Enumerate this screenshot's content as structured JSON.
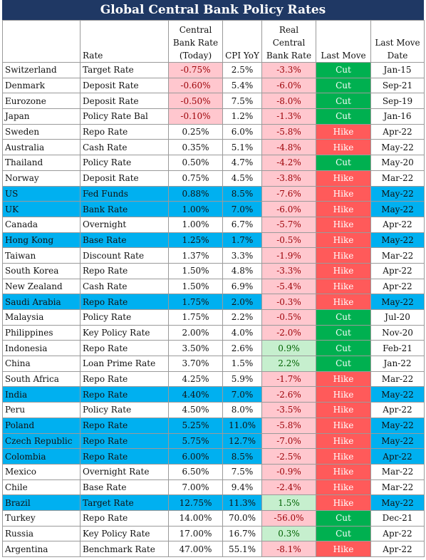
{
  "title": "Global Central Bank Policy Rates",
  "headers": {
    "country": "",
    "rate": "Rate",
    "cb_rate": [
      "Central",
      "Bank Rate",
      "(Today)"
    ],
    "cpi": "CPI YoY",
    "real": [
      "Real",
      "Central",
      "Bank Rate"
    ],
    "last_move": "Last Move",
    "date": [
      "Last Move",
      "Date"
    ]
  },
  "colors": {
    "title_bg": "#1f3864",
    "highlight_row": "#00b0f0",
    "negative_fill": "#ffc7ce",
    "positive_fill": "#c6efce",
    "cut_fill": "#00b050",
    "hike_fill": "#ff5a5a"
  },
  "chart_data": {
    "type": "table",
    "title": "Global Central Bank Policy Rates",
    "columns": [
      "",
      "Rate",
      "Central Bank Rate (Today)",
      "CPI YoY",
      "Real Central Bank Rate",
      "Last Move",
      "Last Move Date"
    ],
    "rows": [
      {
        "country": "Switzerland",
        "rate": "Target Rate",
        "cb_rate": "-0.75%",
        "cpi": "2.5%",
        "real": "-3.3%",
        "move": "Cut",
        "date": "Jan-15",
        "highlight": false
      },
      {
        "country": "Denmark",
        "rate": "Deposit Rate",
        "cb_rate": "-0.60%",
        "cpi": "5.4%",
        "real": "-6.0%",
        "move": "Cut",
        "date": "Sep-21",
        "highlight": false
      },
      {
        "country": "Eurozone",
        "rate": "Deposit Rate",
        "cb_rate": "-0.50%",
        "cpi": "7.5%",
        "real": "-8.0%",
        "move": "Cut",
        "date": "Sep-19",
        "highlight": false
      },
      {
        "country": "Japan",
        "rate": "Policy Rate Bal",
        "cb_rate": "-0.10%",
        "cpi": "1.2%",
        "real": "-1.3%",
        "move": "Cut",
        "date": "Jan-16",
        "highlight": false
      },
      {
        "country": "Sweden",
        "rate": "Repo Rate",
        "cb_rate": "0.25%",
        "cpi": "6.0%",
        "real": "-5.8%",
        "move": "Hike",
        "date": "Apr-22",
        "highlight": false
      },
      {
        "country": "Australia",
        "rate": "Cash Rate",
        "cb_rate": "0.35%",
        "cpi": "5.1%",
        "real": "-4.8%",
        "move": "Hike",
        "date": "May-22",
        "highlight": false
      },
      {
        "country": "Thailand",
        "rate": "Policy Rate",
        "cb_rate": "0.50%",
        "cpi": "4.7%",
        "real": "-4.2%",
        "move": "Cut",
        "date": "May-20",
        "highlight": false
      },
      {
        "country": "Norway",
        "rate": "Deposit Rate",
        "cb_rate": "0.75%",
        "cpi": "4.5%",
        "real": "-3.8%",
        "move": "Hike",
        "date": "Mar-22",
        "highlight": false
      },
      {
        "country": "US",
        "rate": "Fed Funds",
        "cb_rate": "0.88%",
        "cpi": "8.5%",
        "real": "-7.6%",
        "move": "Hike",
        "date": "May-22",
        "highlight": true
      },
      {
        "country": "UK",
        "rate": "Bank Rate",
        "cb_rate": "1.00%",
        "cpi": "7.0%",
        "real": "-6.0%",
        "move": "Hike",
        "date": "May-22",
        "highlight": true
      },
      {
        "country": "Canada",
        "rate": "Overnight",
        "cb_rate": "1.00%",
        "cpi": "6.7%",
        "real": "-5.7%",
        "move": "Hike",
        "date": "Apr-22",
        "highlight": false
      },
      {
        "country": "Hong Kong",
        "rate": "Base Rate",
        "cb_rate": "1.25%",
        "cpi": "1.7%",
        "real": "-0.5%",
        "move": "Hike",
        "date": "May-22",
        "highlight": true
      },
      {
        "country": "Taiwan",
        "rate": "Discount Rate",
        "cb_rate": "1.37%",
        "cpi": "3.3%",
        "real": "-1.9%",
        "move": "Hike",
        "date": "Mar-22",
        "highlight": false
      },
      {
        "country": "South Korea",
        "rate": "Repo Rate",
        "cb_rate": "1.50%",
        "cpi": "4.8%",
        "real": "-3.3%",
        "move": "Hike",
        "date": "Apr-22",
        "highlight": false
      },
      {
        "country": "New Zealand",
        "rate": "Cash Rate",
        "cb_rate": "1.50%",
        "cpi": "6.9%",
        "real": "-5.4%",
        "move": "Hike",
        "date": "Apr-22",
        "highlight": false
      },
      {
        "country": "Saudi Arabia",
        "rate": "Repo Rate",
        "cb_rate": "1.75%",
        "cpi": "2.0%",
        "real": "-0.3%",
        "move": "Hike",
        "date": "May-22",
        "highlight": true
      },
      {
        "country": "Malaysia",
        "rate": "Policy Rate",
        "cb_rate": "1.75%",
        "cpi": "2.2%",
        "real": "-0.5%",
        "move": "Cut",
        "date": "Jul-20",
        "highlight": false
      },
      {
        "country": "Philippines",
        "rate": "Key Policy Rate",
        "cb_rate": "2.00%",
        "cpi": "4.0%",
        "real": "-2.0%",
        "move": "Cut",
        "date": "Nov-20",
        "highlight": false
      },
      {
        "country": "Indonesia",
        "rate": "Repo Rate",
        "cb_rate": "3.50%",
        "cpi": "2.6%",
        "real": "0.9%",
        "move": "Cut",
        "date": "Feb-21",
        "highlight": false
      },
      {
        "country": "China",
        "rate": "Loan Prime Rate",
        "cb_rate": "3.70%",
        "cpi": "1.5%",
        "real": "2.2%",
        "move": "Cut",
        "date": "Jan-22",
        "highlight": false
      },
      {
        "country": "South Africa",
        "rate": "Repo Rate",
        "cb_rate": "4.25%",
        "cpi": "5.9%",
        "real": "-1.7%",
        "move": "Hike",
        "date": "Mar-22",
        "highlight": false
      },
      {
        "country": "India",
        "rate": "Repo Rate",
        "cb_rate": "4.40%",
        "cpi": "7.0%",
        "real": "-2.6%",
        "move": "Hike",
        "date": "May-22",
        "highlight": true
      },
      {
        "country": "Peru",
        "rate": "Policy Rate",
        "cb_rate": "4.50%",
        "cpi": "8.0%",
        "real": "-3.5%",
        "move": "Hike",
        "date": "Apr-22",
        "highlight": false
      },
      {
        "country": "Poland",
        "rate": "Repo Rate",
        "cb_rate": "5.25%",
        "cpi": "11.0%",
        "real": "-5.8%",
        "move": "Hike",
        "date": "May-22",
        "highlight": true
      },
      {
        "country": "Czech Republic",
        "rate": "Repo Rate",
        "cb_rate": "5.75%",
        "cpi": "12.7%",
        "real": "-7.0%",
        "move": "Hike",
        "date": "May-22",
        "highlight": true
      },
      {
        "country": "Colombia",
        "rate": "Repo Rate",
        "cb_rate": "6.00%",
        "cpi": "8.5%",
        "real": "-2.5%",
        "move": "Hike",
        "date": "Apr-22",
        "highlight": true
      },
      {
        "country": "Mexico",
        "rate": "Overnight Rate",
        "cb_rate": "6.50%",
        "cpi": "7.5%",
        "real": "-0.9%",
        "move": "Hike",
        "date": "Mar-22",
        "highlight": false
      },
      {
        "country": "Chile",
        "rate": "Base Rate",
        "cb_rate": "7.00%",
        "cpi": "9.4%",
        "real": "-2.4%",
        "move": "Hike",
        "date": "Mar-22",
        "highlight": false
      },
      {
        "country": "Brazil",
        "rate": "Target Rate",
        "cb_rate": "12.75%",
        "cpi": "11.3%",
        "real": "1.5%",
        "move": "Hike",
        "date": "May-22",
        "highlight": true
      },
      {
        "country": "Turkey",
        "rate": "Repo Rate",
        "cb_rate": "14.00%",
        "cpi": "70.0%",
        "real": "-56.0%",
        "move": "Cut",
        "date": "Dec-21",
        "highlight": false
      },
      {
        "country": "Russia",
        "rate": "Key Policy Rate",
        "cb_rate": "17.00%",
        "cpi": "16.7%",
        "real": "0.3%",
        "move": "Cut",
        "date": "Apr-22",
        "highlight": false
      },
      {
        "country": "Argentina",
        "rate": "Benchmark Rate",
        "cb_rate": "47.00%",
        "cpi": "55.1%",
        "real": "-8.1%",
        "move": "Hike",
        "date": "Apr-22",
        "highlight": false
      }
    ]
  }
}
